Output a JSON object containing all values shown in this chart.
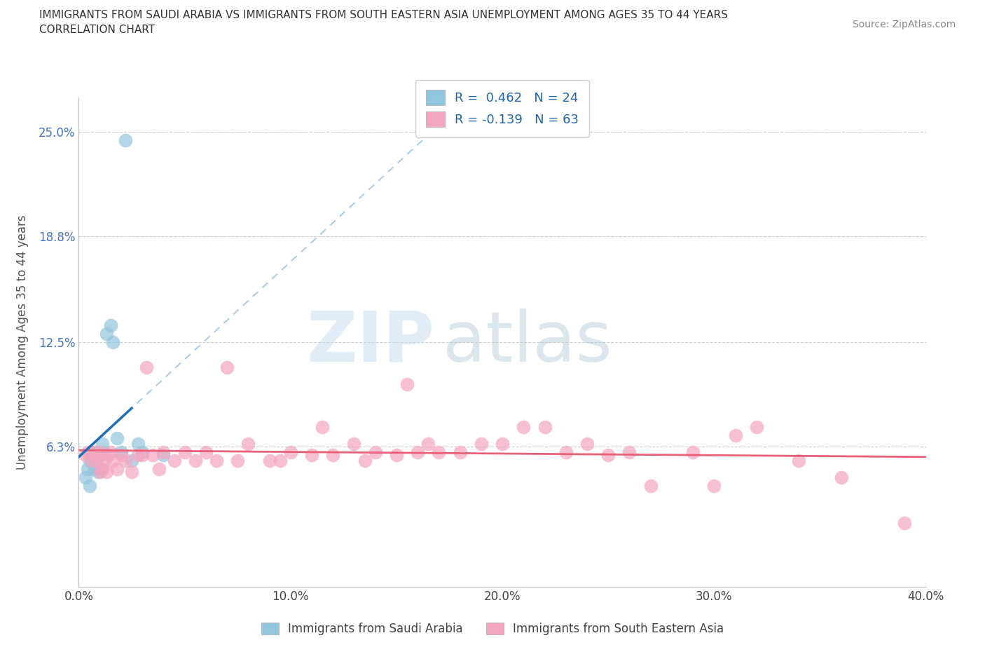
{
  "title_line1": "IMMIGRANTS FROM SAUDI ARABIA VS IMMIGRANTS FROM SOUTH EASTERN ASIA UNEMPLOYMENT AMONG AGES 35 TO 44 YEARS",
  "title_line2": "CORRELATION CHART",
  "source_text": "Source: ZipAtlas.com",
  "ylabel": "Unemployment Among Ages 35 to 44 years",
  "xmin": 0.0,
  "xmax": 0.4,
  "ymin": -0.02,
  "ymax": 0.27,
  "yticks": [
    0.063,
    0.125,
    0.188,
    0.25
  ],
  "ytick_labels": [
    "6.3%",
    "12.5%",
    "18.8%",
    "25.0%"
  ],
  "xticks": [
    0.0,
    0.1,
    0.2,
    0.3,
    0.4
  ],
  "xtick_labels": [
    "0.0%",
    "10.0%",
    "20.0%",
    "30.0%",
    "40.0%"
  ],
  "legend1_R": "R =  0.462",
  "legend1_N": "N = 24",
  "legend2_R": "R = -0.139",
  "legend2_N": "N = 63",
  "color_blue": "#92c5de",
  "color_pink": "#f4a6c0",
  "color_blue_line": "#1f6eb5",
  "color_pink_line": "#e8607a",
  "watermark_zip": "ZIP",
  "watermark_atlas": "atlas",
  "scatter_blue_x": [
    0.003,
    0.004,
    0.005,
    0.005,
    0.006,
    0.006,
    0.007,
    0.008,
    0.008,
    0.009,
    0.01,
    0.01,
    0.011,
    0.012,
    0.013,
    0.015,
    0.016,
    0.018,
    0.02,
    0.022,
    0.025,
    0.028,
    0.03,
    0.04
  ],
  "scatter_blue_y": [
    0.045,
    0.05,
    0.04,
    0.055,
    0.055,
    0.06,
    0.05,
    0.055,
    0.06,
    0.048,
    0.05,
    0.058,
    0.065,
    0.06,
    0.13,
    0.135,
    0.125,
    0.068,
    0.06,
    0.245,
    0.055,
    0.065,
    0.06,
    0.058
  ],
  "scatter_pink_x": [
    0.003,
    0.004,
    0.006,
    0.007,
    0.008,
    0.009,
    0.01,
    0.01,
    0.011,
    0.012,
    0.013,
    0.014,
    0.015,
    0.016,
    0.018,
    0.02,
    0.022,
    0.025,
    0.028,
    0.03,
    0.032,
    0.035,
    0.038,
    0.04,
    0.045,
    0.05,
    0.055,
    0.06,
    0.065,
    0.07,
    0.075,
    0.08,
    0.09,
    0.095,
    0.1,
    0.11,
    0.115,
    0.12,
    0.13,
    0.135,
    0.14,
    0.15,
    0.155,
    0.16,
    0.165,
    0.17,
    0.18,
    0.19,
    0.2,
    0.21,
    0.22,
    0.23,
    0.24,
    0.25,
    0.26,
    0.27,
    0.29,
    0.3,
    0.31,
    0.32,
    0.34,
    0.36,
    0.39
  ],
  "scatter_pink_y": [
    0.058,
    0.06,
    0.055,
    0.06,
    0.055,
    0.058,
    0.048,
    0.06,
    0.05,
    0.055,
    0.048,
    0.058,
    0.06,
    0.055,
    0.05,
    0.058,
    0.055,
    0.048,
    0.058,
    0.058,
    0.11,
    0.058,
    0.05,
    0.06,
    0.055,
    0.06,
    0.055,
    0.06,
    0.055,
    0.11,
    0.055,
    0.065,
    0.055,
    0.055,
    0.06,
    0.058,
    0.075,
    0.058,
    0.065,
    0.055,
    0.06,
    0.058,
    0.1,
    0.06,
    0.065,
    0.06,
    0.06,
    0.065,
    0.065,
    0.075,
    0.075,
    0.06,
    0.065,
    0.058,
    0.06,
    0.04,
    0.06,
    0.04,
    0.07,
    0.075,
    0.055,
    0.045,
    0.018
  ]
}
